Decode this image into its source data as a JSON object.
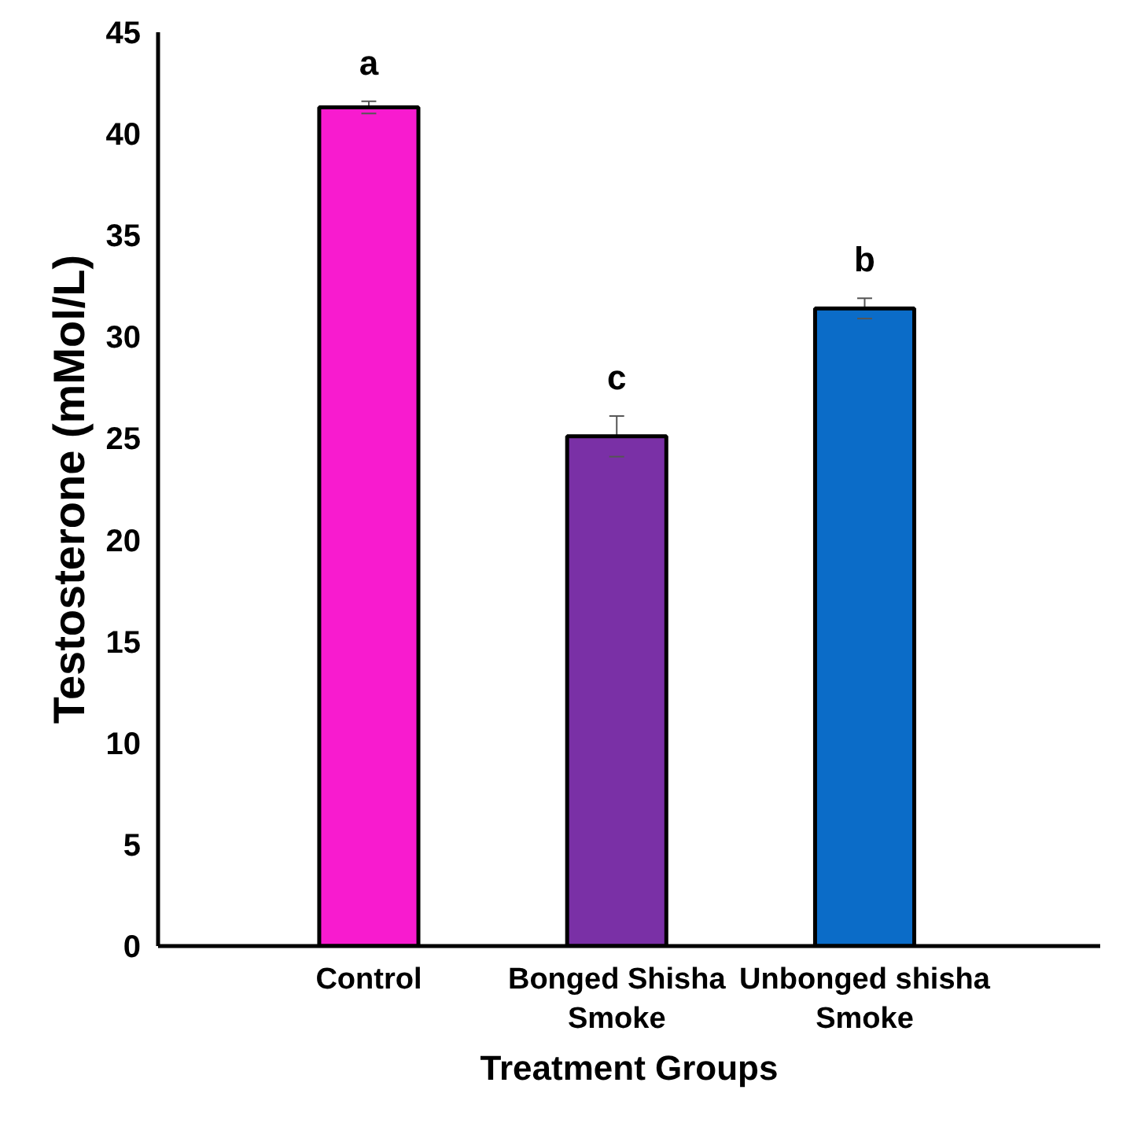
{
  "chart_data": {
    "type": "bar",
    "xlabel": "Treatment Groups",
    "ylabel": "Testosterone (mMol/L)",
    "categories": [
      "Control",
      "Bonged Shisha\nSmoke",
      "Unbonged shisha\nSmoke"
    ],
    "values": [
      41.3,
      25.1,
      31.4
    ],
    "colors": [
      "#f81bcf",
      "#7a30a6",
      "#0b6cc8"
    ],
    "errors": [
      0.3,
      1.0,
      0.5
    ],
    "annotations": [
      {
        "text": "a",
        "x": "Control",
        "y": 41.3
      },
      {
        "text": "c",
        "x": "Bonged Shisha\nSmoke",
        "y": 25.1
      },
      {
        "text": "b",
        "x": "Unbonged shisha\nSmoke",
        "y": 31.4
      }
    ],
    "ylim": [
      0,
      45
    ],
    "yticks": [
      0,
      5,
      10,
      15,
      20,
      25,
      30,
      35,
      40,
      45
    ],
    "grid": false
  }
}
